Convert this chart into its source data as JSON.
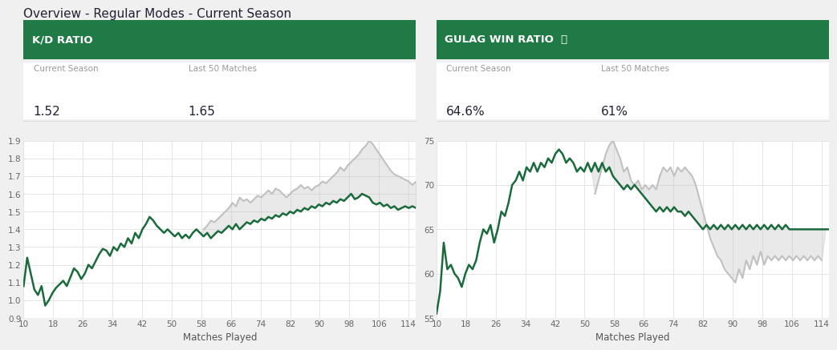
{
  "title": "Overview - Regular Modes - Current Season",
  "title_fontsize": 12,
  "background_color": "#f0f0f0",
  "panel_bg": "#ffffff",
  "header_color": "#1f7a45",
  "dark_green": "#1a6b3c",
  "light_gray": "#c0c0c0",
  "fill_gray": "#dedede",
  "kd_title": "K/D RATIO",
  "kd_season_label": "Current Season",
  "kd_season_val": "1.52",
  "kd_last50_label": "Last 50 Matches",
  "kd_last50_val": "1.65",
  "kd_ylim": [
    0.9,
    1.9
  ],
  "kd_yticks": [
    0.9,
    1.0,
    1.1,
    1.2,
    1.3,
    1.4,
    1.5,
    1.6,
    1.7,
    1.8,
    1.9
  ],
  "gulag_title": "GULAG WIN RATIO 🚨",
  "gulag_title_display": "GULAG WIN RATIO",
  "gulag_season_label": "Current Season",
  "gulag_season_val": "64.6%",
  "gulag_last50_label": "Last 50 Matches",
  "gulag_last50_val": "61%",
  "gulag_ylim": [
    55,
    75
  ],
  "gulag_yticks": [
    55,
    60,
    65,
    70,
    75
  ],
  "x_ticks": [
    10,
    18,
    26,
    34,
    42,
    50,
    58,
    66,
    74,
    82,
    90,
    98,
    106,
    114
  ],
  "xlabel": "Matches Played",
  "legend_cs": "Current Season",
  "legend_l50": "Last 50 Matches"
}
